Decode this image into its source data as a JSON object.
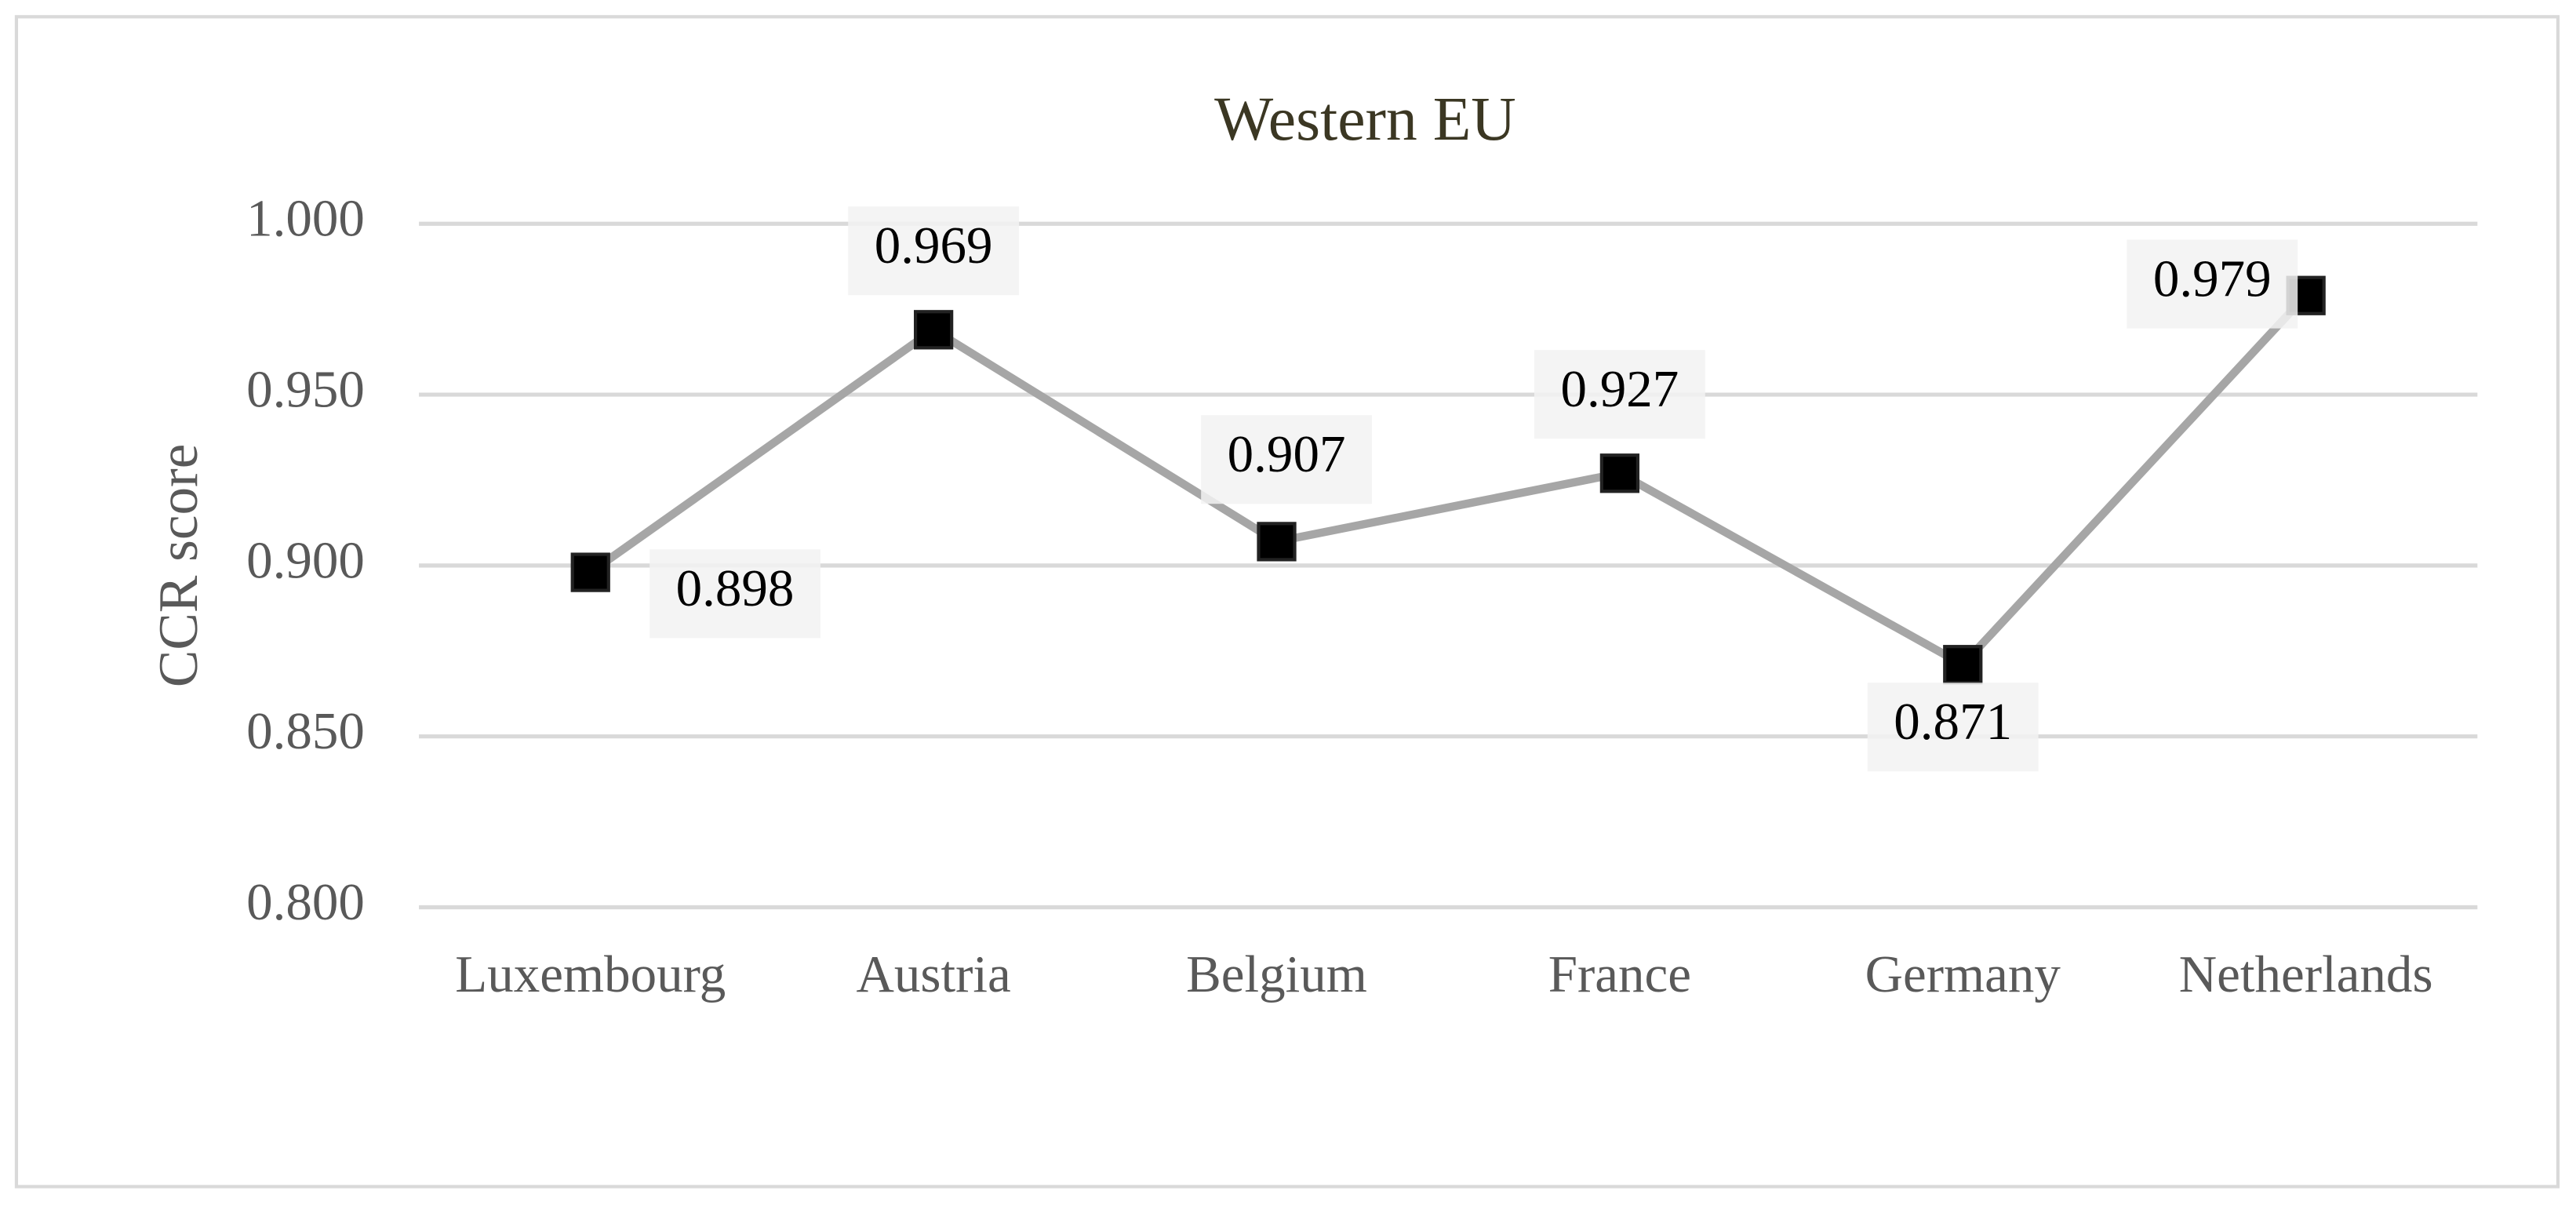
{
  "chart_data": {
    "type": "line",
    "title": "Western EU",
    "y_label": "CCR score",
    "categories": [
      "Luxembourg",
      "Austria",
      "Belgium",
      "France",
      "Germany",
      "Netherlands"
    ],
    "series": [
      {
        "name": "CCR score",
        "color": "#a6a6a6",
        "values": [
          0.898,
          0.969,
          0.907,
          0.927,
          0.871,
          0.979
        ]
      }
    ],
    "ylim": [
      0.8,
      1.0
    ],
    "yticks": [
      {
        "value": 0.8,
        "label": "0.800"
      },
      {
        "value": 0.85,
        "label": "0.850"
      },
      {
        "value": 0.9,
        "label": "0.900"
      },
      {
        "value": 0.95,
        "label": "0.950"
      },
      {
        "value": 1.0,
        "label": "1.000"
      }
    ],
    "grid": true
  }
}
